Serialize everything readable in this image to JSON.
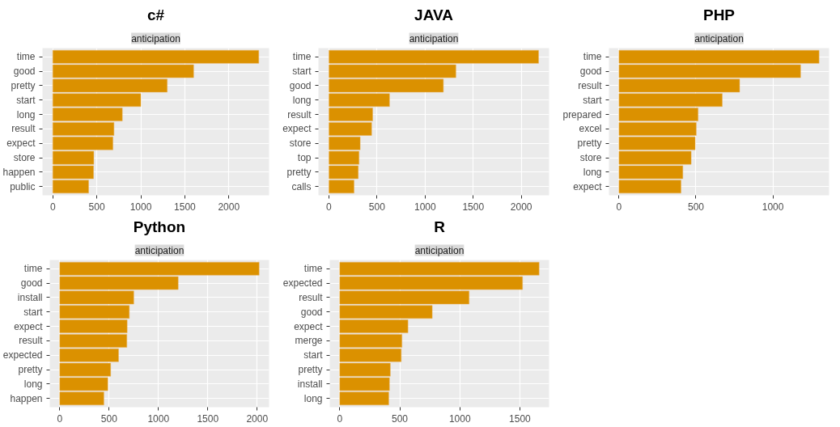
{
  "chart_data": [
    {
      "type": "bar",
      "orientation": "horizontal",
      "title": "c#",
      "subtitle": "anticipation",
      "categories": [
        "time",
        "good",
        "pretty",
        "start",
        "long",
        "result",
        "expect",
        "store",
        "happen",
        "public"
      ],
      "values": [
        2340,
        1600,
        1300,
        1000,
        790,
        695,
        683,
        466,
        463,
        407
      ],
      "color": "#db9100",
      "xlim": [
        -117,
        2457
      ],
      "xticks": [
        0,
        500,
        1000,
        1500,
        2000
      ],
      "grid": true
    },
    {
      "type": "bar",
      "orientation": "horizontal",
      "title": "JAVA",
      "subtitle": "anticipation",
      "categories": [
        "time",
        "start",
        "good",
        "long",
        "result",
        "expect",
        "store",
        "top",
        "pretty",
        "calls"
      ],
      "values": [
        2180,
        1320,
        1190,
        630,
        455,
        444,
        325,
        313,
        305,
        261
      ],
      "color": "#db9100",
      "xlim": [
        -109,
        2289
      ],
      "xticks": [
        0,
        500,
        1000,
        1500,
        2000
      ],
      "grid": true
    },
    {
      "type": "bar",
      "orientation": "horizontal",
      "title": "PHP",
      "subtitle": "anticipation",
      "categories": [
        "time",
        "good",
        "result",
        "start",
        "prepared",
        "excel",
        "pretty",
        "store",
        "long",
        "expect"
      ],
      "values": [
        1300,
        1180,
        784,
        671,
        514,
        502,
        495,
        469,
        415,
        403
      ],
      "color": "#db9100",
      "xlim": [
        -65,
        1365
      ],
      "xticks": [
        0,
        500,
        1000
      ],
      "grid": true
    },
    {
      "type": "bar",
      "orientation": "horizontal",
      "title": "Python",
      "subtitle": "anticipation",
      "categories": [
        "time",
        "good",
        "install",
        "start",
        "expect",
        "result",
        "expected",
        "pretty",
        "long",
        "happen"
      ],
      "values": [
        2020,
        1200,
        750,
        705,
        683,
        680,
        596,
        516,
        487,
        447
      ],
      "color": "#db9100",
      "xlim": [
        -101,
        2121
      ],
      "xticks": [
        0,
        500,
        1000,
        1500,
        2000
      ],
      "grid": true
    },
    {
      "type": "bar",
      "orientation": "horizontal",
      "title": "R",
      "subtitle": "anticipation",
      "categories": [
        "time",
        "expected",
        "result",
        "good",
        "expect",
        "merge",
        "start",
        "pretty",
        "install",
        "long"
      ],
      "values": [
        1660,
        1522,
        1077,
        770,
        568,
        518,
        512,
        421,
        414,
        408
      ],
      "color": "#db9100",
      "xlim": [
        -83,
        1743
      ],
      "xticks": [
        0,
        500,
        1000,
        1500
      ],
      "grid": true
    }
  ]
}
